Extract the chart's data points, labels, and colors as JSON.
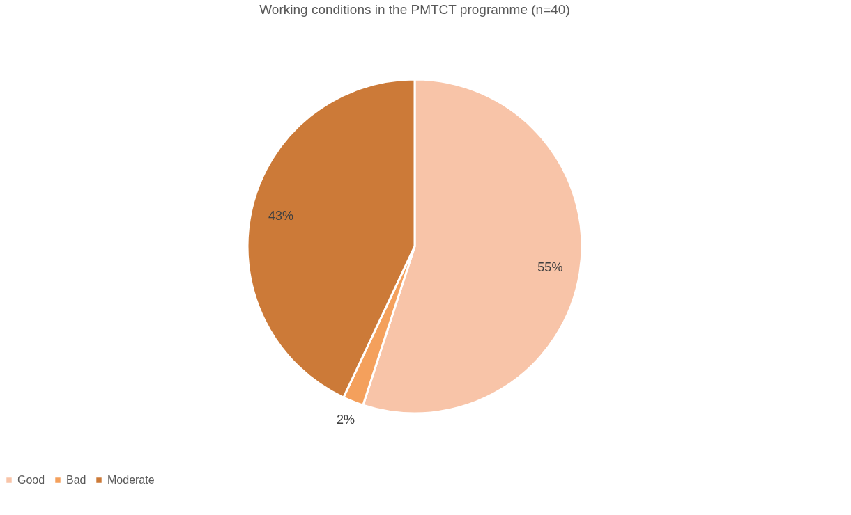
{
  "chart_data": {
    "type": "pie",
    "title": "Working conditions in the PMTCT programme (n=40)",
    "categories": [
      "Good",
      "Bad",
      "Moderate"
    ],
    "values": [
      55,
      2,
      43
    ],
    "colors": [
      "#f8c4a8",
      "#f4a05c",
      "#cc7a38"
    ],
    "value_labels": [
      "55%",
      "2%",
      "43%"
    ],
    "legend": "bottom"
  }
}
